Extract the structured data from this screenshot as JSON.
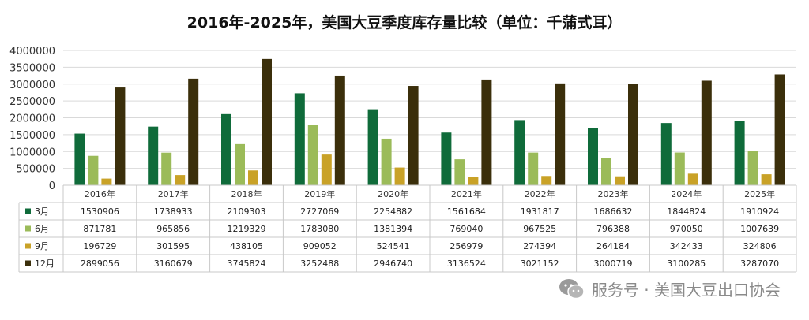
{
  "chart_data": {
    "type": "bar",
    "title": "2016年-2025年，美国大豆季度库存量比较（单位：千蒲式耳）",
    "categories": [
      "2016年",
      "2017年",
      "2018年",
      "2019年",
      "2020年",
      "2021年",
      "2022年",
      "2023年",
      "2024年",
      "2025年"
    ],
    "series": [
      {
        "name": "3月",
        "color": "#0f6b3a",
        "values": [
          1530906,
          1738933,
          2109303,
          2727069,
          2254882,
          1561684,
          1931817,
          1686632,
          1844824,
          1910924
        ]
      },
      {
        "name": "6月",
        "color": "#9bbb59",
        "values": [
          871781,
          965856,
          1219329,
          1783080,
          1381394,
          769040,
          967525,
          796388,
          970050,
          1007639
        ]
      },
      {
        "name": "9月",
        "color": "#c9a227",
        "values": [
          196729,
          301595,
          438105,
          909052,
          524541,
          256979,
          274394,
          264184,
          342433,
          324806
        ]
      },
      {
        "name": "12月",
        "color": "#3b2f0b",
        "values": [
          2899056,
          3160679,
          3745824,
          3252488,
          2946740,
          3136524,
          3021152,
          3000719,
          3100285,
          3287070
        ]
      }
    ],
    "ylim": [
      0,
      4000000
    ],
    "yticks": [
      0,
      500000,
      1000000,
      1500000,
      2000000,
      2500000,
      3000000,
      3500000,
      4000000
    ],
    "grid": true,
    "legend": "bottom data table"
  },
  "watermark": {
    "text": "服务号 · 美国大豆出口协会",
    "icon": "wechat-icon"
  }
}
